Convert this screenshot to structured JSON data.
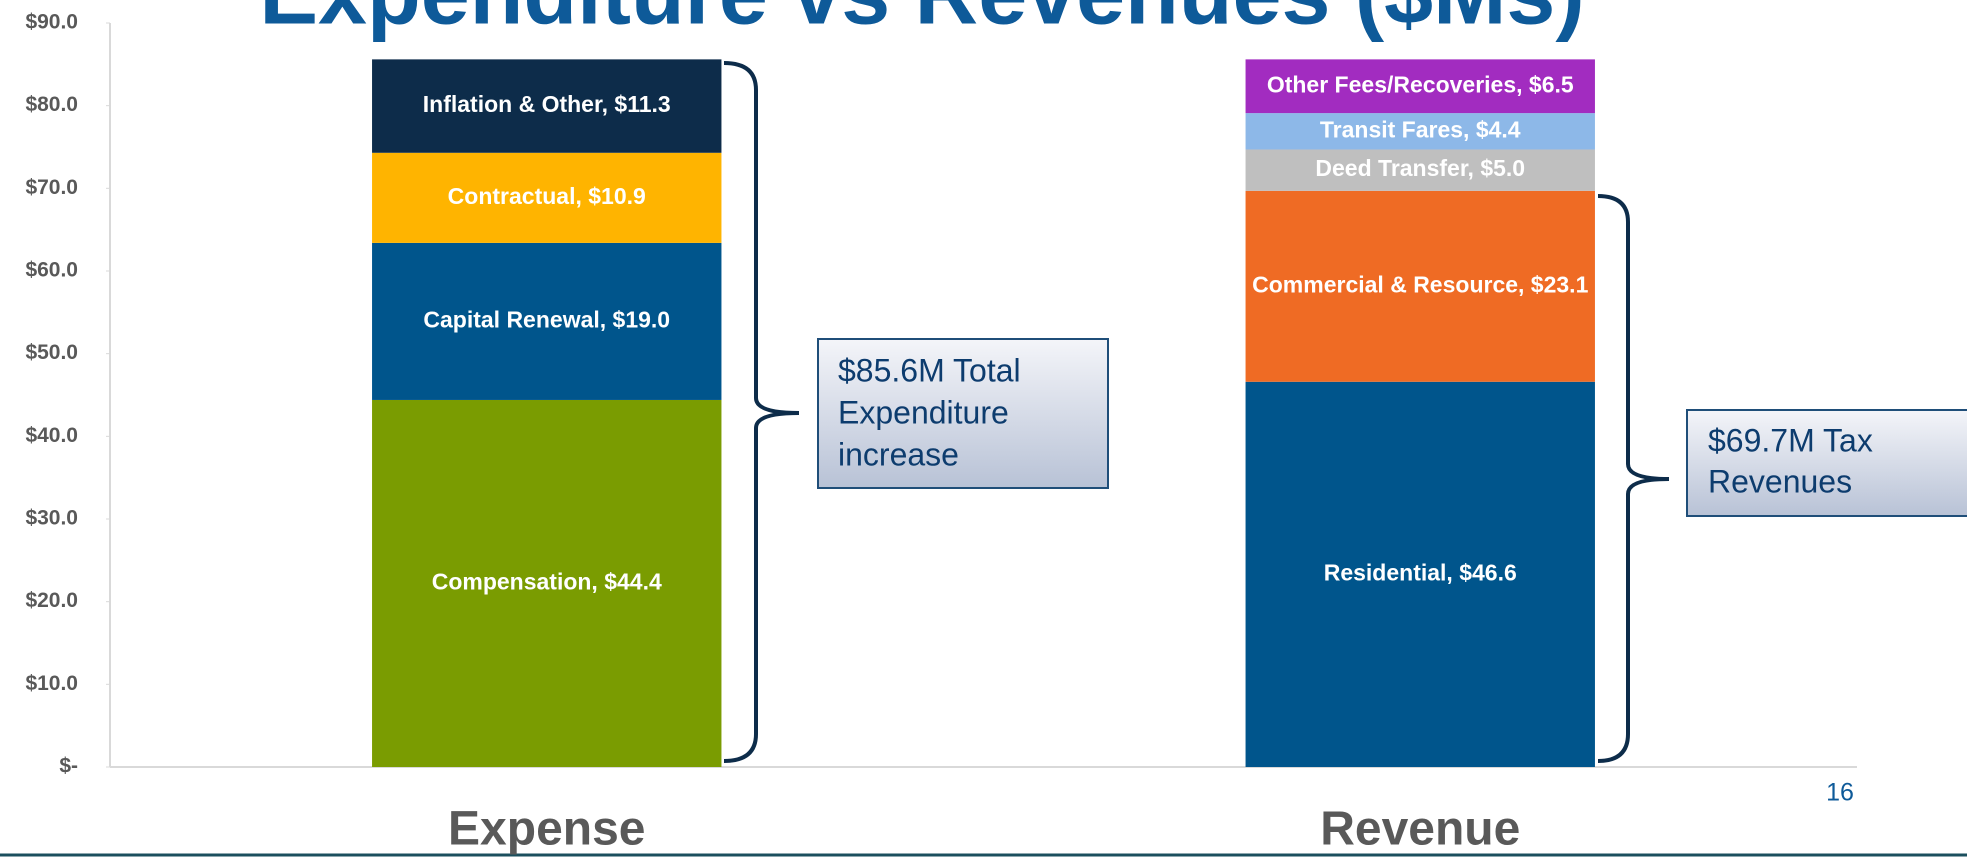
{
  "chart_data": {
    "type": "stacked-bar",
    "title": "Expenditure vs Revenues ($Ms)",
    "categories": [
      "Expense",
      "Revenue"
    ],
    "series": [
      {
        "color": "#7a9c01",
        "values": [
          44.4,
          null
        ],
        "value_labels": [
          "Compensation, $44.4",
          null
        ]
      },
      {
        "color": "#00558c",
        "values": [
          19.0,
          null
        ],
        "value_labels": [
          "Capital Renewal, $19.0",
          null
        ]
      },
      {
        "color": "#ffb400",
        "values": [
          10.9,
          null
        ],
        "value_labels": [
          "Contractual, $10.9",
          null
        ]
      },
      {
        "color": "#0d2c4a",
        "values": [
          11.3,
          null
        ],
        "value_labels": [
          "Inflation & Other, $11.3",
          null
        ]
      },
      {
        "color": "#00558c",
        "values": [
          null,
          46.6
        ],
        "value_labels": [
          null,
          "Residential, $46.6"
        ]
      },
      {
        "color": "#ef6b24",
        "values": [
          null,
          23.1
        ],
        "value_labels": [
          null,
          "Commercial & Resource, $23.1"
        ]
      },
      {
        "color": "#bfbfbf",
        "values": [
          null,
          5.0
        ],
        "value_labels": [
          null,
          "Deed Transfer, $5.0"
        ]
      },
      {
        "color": "#8db8e8",
        "values": [
          null,
          4.4
        ],
        "value_labels": [
          null,
          "Transit Fares, $4.4"
        ]
      },
      {
        "color": "#a22cc0",
        "values": [
          null,
          6.5
        ],
        "value_labels": [
          null,
          "Other Fees/Recoveries, $6.5"
        ]
      }
    ],
    "ylim": [
      0,
      90
    ],
    "yticks": [
      {
        "value": 0,
        "label": "$-"
      },
      {
        "value": 10,
        "label": "$10.0"
      },
      {
        "value": 20,
        "label": "$20.0"
      },
      {
        "value": 30,
        "label": "$30.0"
      },
      {
        "value": 40,
        "label": "$40.0"
      },
      {
        "value": 50,
        "label": "$50.0"
      },
      {
        "value": 60,
        "label": "$60.0"
      },
      {
        "value": 70,
        "label": "$70.0"
      },
      {
        "value": 80,
        "label": "$80.0"
      },
      {
        "value": 90,
        "label": "$90.0"
      }
    ],
    "annotations": [
      [
        "$85.6M Total",
        "Expenditure",
        "increase"
      ],
      [
        "$69.7M Tax",
        "Revenues"
      ]
    ],
    "page_number": "16"
  }
}
